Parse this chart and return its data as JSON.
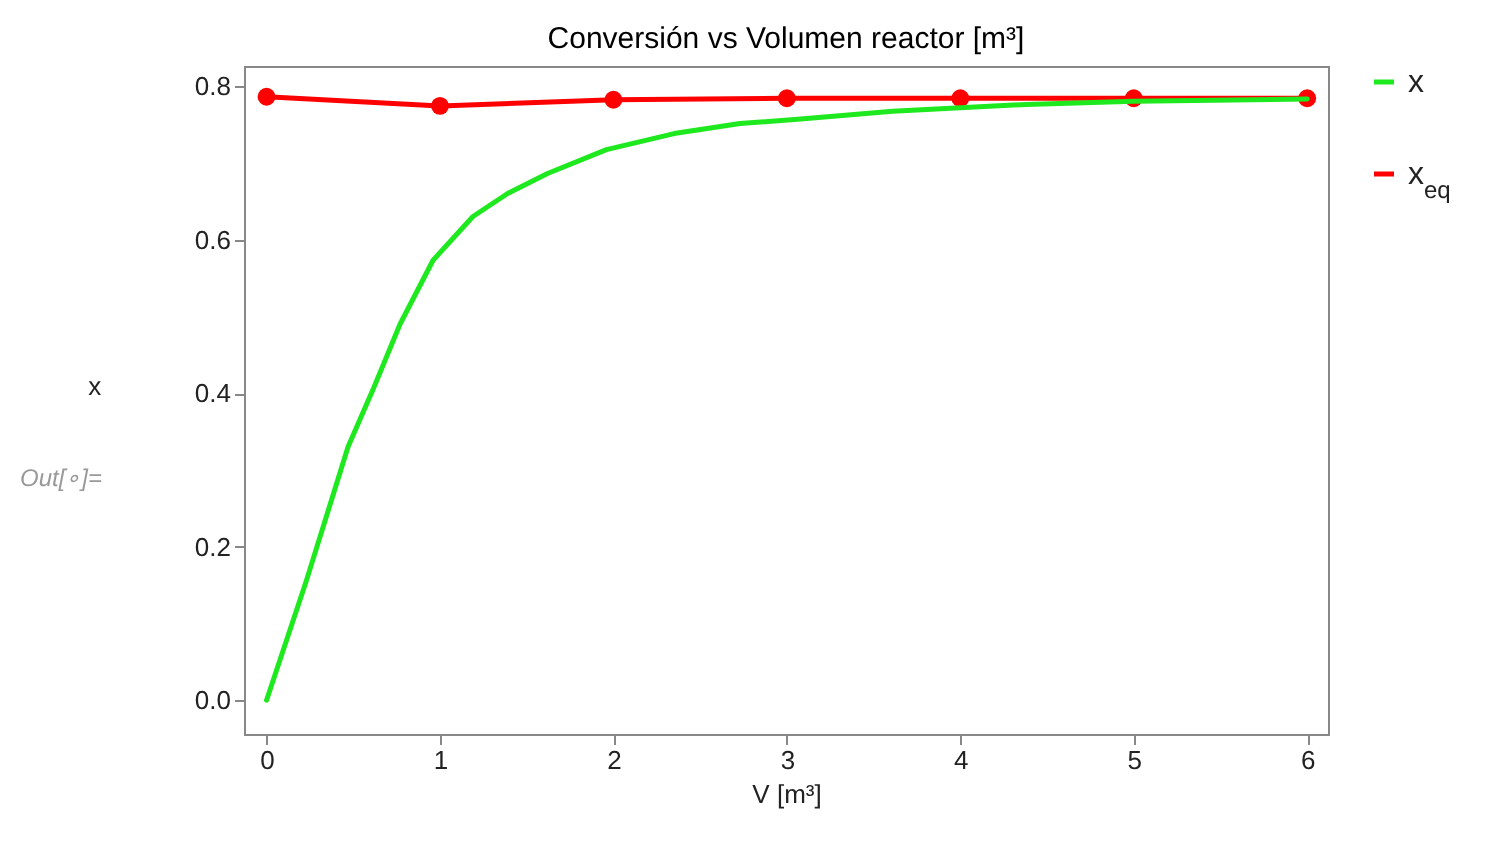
{
  "chart_data": {
    "type": "line",
    "title": "Conversión vs Volumen reactor [m³]",
    "xlabel": "V [m³]",
    "ylabel": "x",
    "annotations": [
      "Out[∘]="
    ],
    "xlim": [
      -0.13,
      6.12
    ],
    "xticks": [
      0,
      1,
      2,
      3,
      4,
      5,
      6
    ],
    "ylim": [
      -0.044,
      0.826
    ],
    "yticks": [
      {
        "value": 0,
        "label": "0.0"
      },
      {
        "value": 0.2,
        "label": "0.2"
      },
      {
        "value": 0.4,
        "label": "0.4"
      },
      {
        "value": 0.6,
        "label": "0.6"
      },
      {
        "value": 0.8,
        "label": "0.8"
      }
    ],
    "grid": false,
    "legend": "right",
    "series": [
      {
        "name": "x",
        "color": "#1ee81e",
        "marker": "none",
        "x": [
          0,
          0.23,
          0.47,
          0.62,
          0.77,
          0.96,
          1.19,
          1.39,
          1.62,
          1.96,
          2.35,
          2.73,
          3.08,
          3.61,
          4.38,
          5,
          6
        ],
        "values": [
          0,
          0.156,
          0.33,
          0.408,
          0.49,
          0.573,
          0.63,
          0.66,
          0.686,
          0.717,
          0.738,
          0.751,
          0.757,
          0.767,
          0.776,
          0.78,
          0.783
        ]
      },
      {
        "name": "x$_{eq}$",
        "color": "#ff0000",
        "marker": "circle",
        "x": [
          0,
          1,
          2,
          3,
          4,
          5,
          6
        ],
        "values": [
          0.786,
          0.774,
          0.782,
          0.784,
          0.784,
          0.784,
          0.784
        ]
      }
    ]
  }
}
